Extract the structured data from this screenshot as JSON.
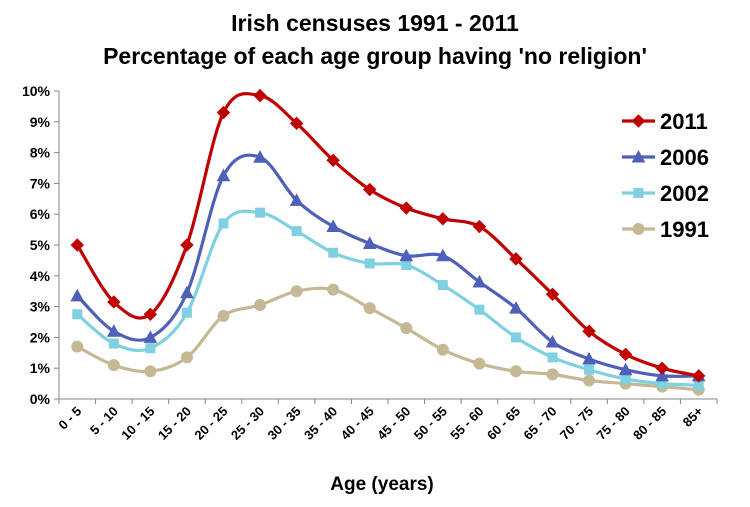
{
  "chart_data": {
    "type": "line",
    "title": "Irish censuses 1991 - 2011",
    "subtitle": "Percentage of each age group having 'no religion'",
    "xlabel": "Age (years)",
    "ylabel": "",
    "ylim": [
      0,
      10
    ],
    "yticks": [
      "0%",
      "1%",
      "2%",
      "3%",
      "4%",
      "5%",
      "6%",
      "7%",
      "8%",
      "9%",
      "10%"
    ],
    "categories": [
      "0 - 5",
      "5 - 10",
      "10 - 15",
      "15 - 20",
      "20 - 25",
      "25 - 30",
      "30 - 35",
      "35 - 40",
      "40 - 45",
      "45 - 50",
      "50 - 55",
      "55 - 60",
      "60 - 65",
      "65 - 70",
      "70 - 75",
      "75 - 80",
      "80 - 85",
      "85+"
    ],
    "legend_position": "right",
    "series": [
      {
        "name": "2011",
        "color": "#c00000",
        "marker": "diamond",
        "values": [
          5.0,
          3.15,
          2.75,
          5.0,
          9.3,
          9.85,
          8.95,
          7.75,
          6.8,
          6.2,
          5.85,
          5.6,
          4.55,
          3.4,
          2.2,
          1.45,
          1.0,
          0.75
        ]
      },
      {
        "name": "2006",
        "color": "#4f60b8",
        "marker": "triangle",
        "values": [
          3.35,
          2.2,
          2.0,
          3.45,
          7.25,
          7.85,
          6.45,
          5.6,
          5.05,
          4.65,
          4.65,
          3.8,
          2.95,
          1.85,
          1.3,
          0.95,
          0.75,
          0.75
        ]
      },
      {
        "name": "2002",
        "color": "#7fd0e0",
        "marker": "square",
        "values": [
          2.75,
          1.8,
          1.65,
          2.8,
          5.7,
          6.05,
          5.45,
          4.75,
          4.4,
          4.35,
          3.7,
          2.9,
          2.0,
          1.35,
          0.95,
          0.65,
          0.5,
          0.45
        ]
      },
      {
        "name": "1991",
        "color": "#c4b994",
        "marker": "circle",
        "values": [
          1.7,
          1.1,
          0.9,
          1.35,
          2.7,
          3.05,
          3.5,
          3.55,
          2.95,
          2.3,
          1.6,
          1.15,
          0.9,
          0.8,
          0.6,
          0.5,
          0.4,
          0.3
        ]
      }
    ]
  }
}
